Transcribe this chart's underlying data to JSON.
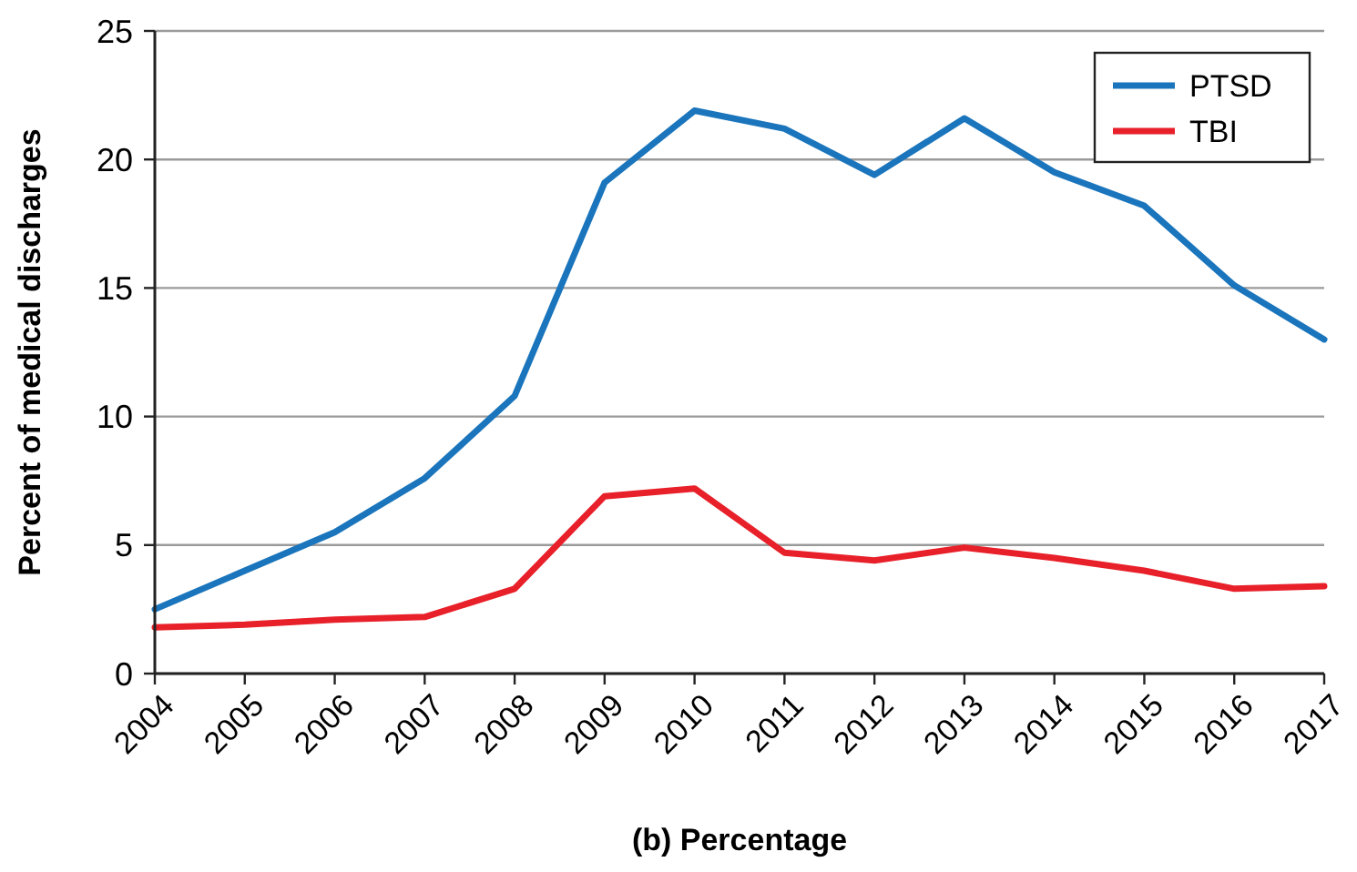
{
  "chart_data": {
    "type": "line",
    "xlabel": "(b) Percentage",
    "ylabel": "Percent of medical discharges",
    "x": [
      2004,
      2005,
      2006,
      2007,
      2008,
      2009,
      2010,
      2011,
      2012,
      2013,
      2014,
      2015,
      2016,
      2017
    ],
    "series": [
      {
        "name": "PTSD",
        "color": "#1a75bc",
        "values": [
          2.5,
          4.0,
          5.5,
          7.6,
          10.8,
          19.1,
          21.9,
          21.2,
          19.4,
          21.6,
          19.5,
          18.2,
          15.1,
          13.0
        ]
      },
      {
        "name": "TBI",
        "color": "#e8202a",
        "values": [
          1.8,
          1.9,
          2.1,
          2.2,
          3.3,
          6.9,
          7.2,
          4.7,
          4.4,
          4.9,
          4.5,
          4.0,
          3.3,
          3.4
        ]
      }
    ],
    "xlim": [
      2004,
      2017
    ],
    "xticks": [
      2004,
      2005,
      2006,
      2007,
      2008,
      2009,
      2010,
      2011,
      2012,
      2013,
      2014,
      2015,
      2016,
      2017
    ],
    "ylim": [
      0,
      25
    ],
    "yticks": [
      0,
      5,
      10,
      15,
      20,
      25
    ],
    "grid": "y",
    "legend": "top right",
    "marker": "none",
    "line_style": "solid"
  }
}
